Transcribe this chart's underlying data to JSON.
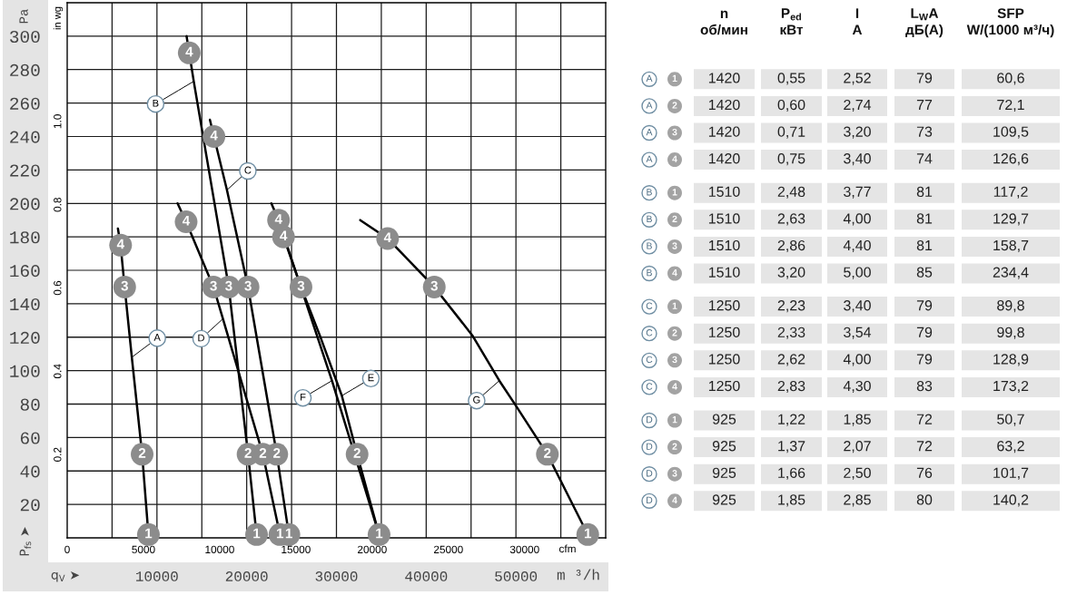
{
  "chart_data": [
    {
      "type": "line",
      "xlabel": "m ³/h",
      "x2label": "cfm",
      "ylabel": "Pa",
      "y2label": "in wg",
      "xlim": [
        0,
        60000
      ],
      "xticks": [
        {
          "value": 5000,
          "label": null
        },
        10000,
        {
          "value": 15000,
          "label": null
        },
        20000,
        {
          "value": 25000,
          "label": null
        },
        30000,
        {
          "value": 35000,
          "label": null
        },
        40000,
        {
          "value": 45000,
          "label": null
        },
        50000,
        {
          "value": 55000,
          "label": null
        }
      ],
      "x2lim": [
        0,
        35315
      ],
      "x2ticks": [
        0,
        5000,
        10000,
        15000,
        20000,
        25000,
        30000
      ],
      "ylim": [
        0,
        320
      ],
      "yticks": [
        20,
        40,
        60,
        80,
        100,
        120,
        140,
        160,
        180,
        200,
        220,
        240,
        260,
        280,
        300
      ],
      "y2lim": [
        0,
        1.285
      ],
      "y2ticks": [
        0.2,
        0.4,
        0.6,
        0.8,
        {
          "value": 1,
          "label": "1.0"
        }
      ],
      "grid": true,
      "series": [
        {
          "name": "A",
          "color": "#000000",
          "x": [
            5650,
            5950,
            6400,
            7200,
            8350,
            9050
          ],
          "values": [
            185,
            175,
            150,
            108,
            50,
            2
          ]
        },
        {
          "name": "B",
          "color": "#000000",
          "x": [
            13300,
            13600,
            14100,
            18000,
            20150,
            21100
          ],
          "values": [
            300,
            290,
            273,
            150,
            50,
            2
          ]
        },
        {
          "name": "C",
          "color": "#000000",
          "x": [
            15900,
            16350,
            17800,
            20150,
            23350,
            24700
          ],
          "values": [
            250,
            240,
            208,
            150,
            50,
            2
          ]
        },
        {
          "name": "D",
          "color": "#000000",
          "x": [
            12300,
            13250,
            16300,
            17350,
            21800,
            23700
          ],
          "values": [
            200,
            189,
            150,
            131,
            50,
            2
          ]
        },
        {
          "name": "E",
          "color": "#000000",
          "x": [
            24100,
            26050,
            28150,
            30600,
            32300,
            34750
          ],
          "values": [
            180,
            150,
            121,
            85,
            50,
            2
          ]
        },
        {
          "name": "F",
          "color": "#000000",
          "x": [
            22750,
            23550,
            29500,
            34750
          ],
          "values": [
            200,
            190,
            94,
            2
          ]
        },
        {
          "name": "G",
          "color": "#000000",
          "x": [
            32650,
            35700,
            40900,
            45150,
            48150,
            50000,
            53500,
            58000
          ],
          "values": [
            190,
            179,
            150,
            121,
            94,
            79,
            50,
            2
          ]
        }
      ],
      "annotations": [
        "P$_{fs}$ ➤",
        "q$_{V}$ ➤",
        {
          "text": "4",
          "x": 5950,
          "y": 175
        },
        {
          "text": "3",
          "x": 6400,
          "y": 150
        },
        {
          "text": "2",
          "x": 8350,
          "y": 50
        },
        {
          "text": "1",
          "x": 9050,
          "y": 2
        },
        {
          "text": "4",
          "x": 13600,
          "y": 290
        },
        {
          "text": "3",
          "x": 18000,
          "y": 150
        },
        {
          "text": "2",
          "x": 20150,
          "y": 50
        },
        {
          "text": "1",
          "x": 21100,
          "y": 2
        },
        {
          "text": "4",
          "x": 16350,
          "y": 240
        },
        {
          "text": "3",
          "x": 20150,
          "y": 150
        },
        {
          "text": "2",
          "x": 23350,
          "y": 50
        },
        {
          "text": "1",
          "x": 24700,
          "y": 2
        },
        {
          "text": "4",
          "x": 13250,
          "y": 189
        },
        {
          "text": "3",
          "x": 16300,
          "y": 150
        },
        {
          "text": "2",
          "x": 21800,
          "y": 50
        },
        {
          "text": "1",
          "x": 23700,
          "y": 2
        },
        {
          "text": "4",
          "x": 24100,
          "y": 180
        },
        {
          "text": "4",
          "x": 23550,
          "y": 190
        },
        {
          "text": "3",
          "x": 26050,
          "y": 150
        },
        {
          "text": "2",
          "x": 32300,
          "y": 50
        },
        {
          "text": "1",
          "x": 34750,
          "y": 2
        },
        {
          "text": "4",
          "x": 35700,
          "y": 179
        },
        {
          "text": "3",
          "x": 40900,
          "y": 150
        },
        {
          "text": "2",
          "x": 53500,
          "y": 50
        },
        {
          "text": "1",
          "x": 58000,
          "y": 2
        }
      ]
    },
    {
      "type": "other",
      "categories": [
        "n\nоб/мин",
        "P$_{ed}$\nкВт",
        "I\nA",
        "L$_{W}$A\nдБ(A)",
        "SFP\nW/(1000 м³/ч)"
      ],
      "y_categories": [
        "A",
        "A",
        "A",
        "A",
        "B",
        "B",
        "B",
        "B",
        "C",
        "C",
        "C",
        "C",
        "D",
        "D",
        "D",
        "D"
      ],
      "y2_categories": [
        "1",
        "2",
        "3",
        "4",
        "1",
        "2",
        "3",
        "4",
        "1",
        "2",
        "3",
        "4",
        "1",
        "2",
        "3",
        "4"
      ],
      "cell_labels": [
        [
          "1420",
          "0,55",
          "2,52",
          "79",
          "60,6"
        ],
        [
          "1420",
          "0,60",
          "2,74",
          "77",
          "72,1"
        ],
        [
          "1420",
          "0,71",
          "3,20",
          "73",
          "109,5"
        ],
        [
          "1420",
          "0,75",
          "3,40",
          "74",
          "126,6"
        ],
        [
          "1510",
          "2,48",
          "3,77",
          "81",
          "117,2"
        ],
        [
          "1510",
          "2,63",
          "4,00",
          "81",
          "129,7"
        ],
        [
          "1510",
          "2,86",
          "4,40",
          "81",
          "158,7"
        ],
        [
          "1510",
          "3,20",
          "5,00",
          "85",
          "234,4"
        ],
        [
          "1250",
          "2,23",
          "3,40",
          "79",
          "89,8"
        ],
        [
          "1250",
          "2,33",
          "3,54",
          "79",
          "99,8"
        ],
        [
          "1250",
          "2,62",
          "4,00",
          "79",
          "128,9"
        ],
        [
          "1250",
          "2,83",
          "4,30",
          "83",
          "173,2"
        ],
        [
          "925",
          "1,22",
          "1,85",
          "72",
          "50,7"
        ],
        [
          "925",
          "1,37",
          "2,07",
          "72",
          "63,2"
        ],
        [
          "925",
          "1,66",
          "2,50",
          "76",
          "101,7"
        ],
        [
          "925",
          "1,85",
          "2,85",
          "80",
          "140,2"
        ]
      ]
    }
  ]
}
